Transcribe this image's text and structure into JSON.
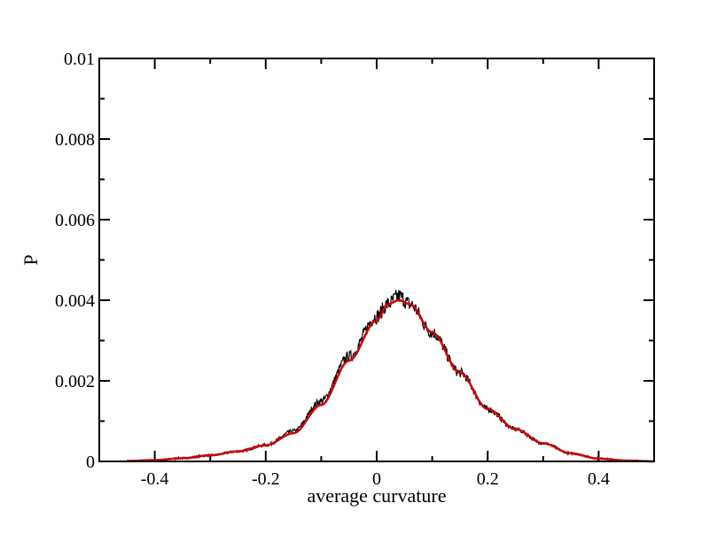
{
  "chart_data": {
    "type": "line",
    "title": "",
    "xlabel": "average curvature",
    "ylabel": "P",
    "xlim": [
      -0.5,
      0.5
    ],
    "ylim": [
      0,
      0.01
    ],
    "x_ticks": [
      -0.4,
      -0.2,
      0,
      0.2,
      0.4
    ],
    "x_tick_labels": [
      "-0.4",
      "-0.2",
      "0",
      "0.2",
      "0.4"
    ],
    "y_ticks": [
      0,
      0.002,
      0.004,
      0.006,
      0.008,
      0.01
    ],
    "y_tick_labels": [
      "0",
      "0.002",
      "0.004",
      "0.006",
      "0.008",
      "0.01"
    ],
    "grid": false,
    "legend": "none",
    "series": [
      {
        "color": "#000000",
        "style": "noisy histogram",
        "x": [
          -0.45,
          -0.4,
          -0.35,
          -0.3,
          -0.25,
          -0.2,
          -0.15,
          -0.1,
          -0.05,
          0,
          0.02,
          0.04,
          0.06,
          0.1,
          0.15,
          0.2,
          0.25,
          0.3,
          0.35,
          0.4,
          0.45,
          0.5
        ],
        "values": [
          1e-05,
          3e-05,
          8e-05,
          0.00015,
          0.00025,
          0.0004,
          0.00075,
          0.0015,
          0.0026,
          0.0036,
          0.0039,
          0.0041,
          0.0039,
          0.0032,
          0.0022,
          0.0013,
          0.0008,
          0.00045,
          0.0002,
          7e-05,
          2e-05,
          0.0
        ]
      },
      {
        "color": "#cc0000",
        "style": "smooth fit",
        "x": [
          -0.45,
          -0.4,
          -0.35,
          -0.3,
          -0.25,
          -0.2,
          -0.15,
          -0.1,
          -0.05,
          0,
          0.02,
          0.04,
          0.06,
          0.1,
          0.15,
          0.2,
          0.25,
          0.3,
          0.35,
          0.4,
          0.45,
          0.5
        ],
        "values": [
          1e-05,
          3e-05,
          8e-05,
          0.00015,
          0.00025,
          0.0004,
          0.0007,
          0.0014,
          0.0025,
          0.0035,
          0.0039,
          0.004,
          0.0039,
          0.0032,
          0.0022,
          0.0013,
          0.0008,
          0.00045,
          0.0002,
          7e-05,
          2e-05,
          0.0
        ]
      }
    ]
  }
}
